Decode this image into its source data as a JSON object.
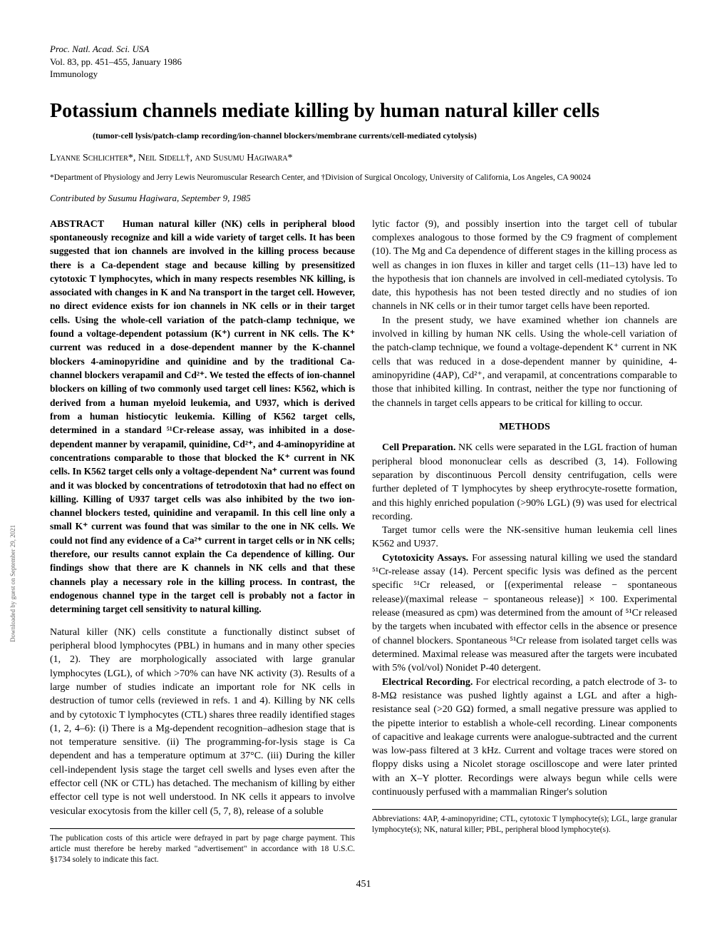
{
  "meta": {
    "journal": "Proc. Natl. Acad. Sci. USA",
    "volume": "Vol. 83, pp. 451–455, January 1986",
    "section": "Immunology"
  },
  "title": "Potassium channels mediate killing by human natural killer cells",
  "subtitle": "(tumor-cell lysis/patch-clamp recording/ion-channel blockers/membrane currents/cell-mediated cytolysis)",
  "authors": "Lyanne Schlichter*, Neil Sidell†, and Susumu Hagiwara*",
  "affiliation": "*Department of Physiology and Jerry Lewis Neuromuscular Research Center, and †Division of Surgical Oncology, University of California, Los Angeles, CA 90024",
  "contributed": "Contributed by Susumu Hagiwara, September 9, 1985",
  "abstract_label": "ABSTRACT",
  "abstract": "Human natural killer (NK) cells in peripheral blood spontaneously recognize and kill a wide variety of target cells. It has been suggested that ion channels are involved in the killing process because there is a Ca-dependent stage and because killing by presensitized cytotoxic T lymphocytes, which in many respects resembles NK killing, is associated with changes in K and Na transport in the target cell. However, no direct evidence exists for ion channels in NK cells or in their target cells. Using the whole-cell variation of the patch-clamp technique, we found a voltage-dependent potassium (K⁺) current in NK cells. The K⁺ current was reduced in a dose-dependent manner by the K-channel blockers 4-aminopyridine and quinidine and by the traditional Ca-channel blockers verapamil and Cd²⁺. We tested the effects of ion-channel blockers on killing of two commonly used target cell lines: K562, which is derived from a human myeloid leukemia, and U937, which is derived from a human histiocytic leukemia. Killing of K562 target cells, determined in a standard ⁵¹Cr-release assay, was inhibited in a dose-dependent manner by verapamil, quinidine, Cd²⁺, and 4-aminopyridine at concentrations comparable to those that blocked the K⁺ current in NK cells. In K562 target cells only a voltage-dependent Na⁺ current was found and it was blocked by concentrations of tetrodotoxin that had no effect on killing. Killing of U937 target cells was also inhibited by the two ion-channel blockers tested, quinidine and verapamil. In this cell line only a small K⁺ current was found that was similar to the one in NK cells. We could not find any evidence of a Ca²⁺ current in target cells or in NK cells; therefore, our results cannot explain the Ca dependence of killing. Our findings show that there are K channels in NK cells and that these channels play a necessary role in the killing process. In contrast, the endogenous channel type in the target cell is probably not a factor in determining target cell sensitivity to natural killing.",
  "intro_p1": "Natural killer (NK) cells constitute a functionally distinct subset of peripheral blood lymphocytes (PBL) in humans and in many other species (1, 2). They are morphologically associated with large granular lymphocytes (LGL), of which >70% can have NK activity (3). Results of a large number of studies indicate an important role for NK cells in destruction of tumor cells (reviewed in refs. 1 and 4). Killing by NK cells and by cytotoxic T lymphocytes (CTL) shares three readily identified stages (1, 2, 4–6): (i) There is a Mg-dependent recognition–adhesion stage that is not temperature sensitive. (ii) The programming-for-lysis stage is Ca dependent and has a temperature optimum at 37°C. (iii) During the killer cell-independent lysis stage the target cell swells and lyses even after the effector cell (NK or CTL) has detached. The mechanism of killing by either effector cell type is not well understood. In NK cells it appears to involve vesicular exocytosis from the killer cell (5, 7, 8), release of a soluble",
  "col2_p1": "lytic factor (9), and possibly insertion into the target cell of tubular complexes analogous to those formed by the C9 fragment of complement (10). The Mg and Ca dependence of different stages in the killing process as well as changes in ion fluxes in killer and target cells (11–13) have led to the hypothesis that ion channels are involved in cell-mediated cytolysis. To date, this hypothesis has not been tested directly and no studies of ion channels in NK cells or in their tumor target cells have been reported.",
  "col2_p2": "In the present study, we have examined whether ion channels are involved in killing by human NK cells. Using the whole-cell variation of the patch-clamp technique, we found a voltage-dependent K⁺ current in NK cells that was reduced in a dose-dependent manner by quinidine, 4-aminopyridine (4AP), Cd²⁺, and verapamil, at concentrations comparable to those that inhibited killing. In contrast, neither the type nor functioning of the channels in target cells appears to be critical for killing to occur.",
  "methods_head": "METHODS",
  "methods_cell_head": "Cell Preparation.",
  "methods_cell": " NK cells were separated in the LGL fraction of human peripheral blood mononuclear cells as described (3, 14). Following separation by discontinuous Percoll density centrifugation, cells were further depleted of T lymphocytes by sheep erythrocyte-rosette formation, and this highly enriched population (>90% LGL) (9) was used for electrical recording.",
  "methods_target": "Target tumor cells were the NK-sensitive human leukemia cell lines K562 and U937.",
  "methods_cyto_head": "Cytotoxicity Assays.",
  "methods_cyto": " For assessing natural killing we used the standard ⁵¹Cr-release assay (14). Percent specific lysis was defined as the percent specific ⁵¹Cr released, or [(experimental release − spontaneous release)/(maximal release − spontaneous release)] × 100. Experimental release (measured as cpm) was determined from the amount of ⁵¹Cr released by the targets when incubated with effector cells in the absence or presence of channel blockers. Spontaneous ⁵¹Cr release from isolated target cells was determined. Maximal release was measured after the targets were incubated with 5% (vol/vol) Nonidet P-40 detergent.",
  "methods_elec_head": "Electrical Recording.",
  "methods_elec": " For electrical recording, a patch electrode of 3- to 8-MΩ resistance was pushed lightly against a LGL and after a high-resistance seal (>20 GΩ) formed, a small negative pressure was applied to the pipette interior to establish a whole-cell recording. Linear components of capacitive and leakage currents were analogue-subtracted and the current was low-pass filtered at 3 kHz. Current and voltage traces were stored on floppy disks using a Nicolet storage oscilloscope and were later printed with an X–Y plotter. Recordings were always begun while cells were continuously perfused with a mammalian Ringer's solution",
  "footnote_left": "The publication costs of this article were defrayed in part by page charge payment. This article must therefore be hereby marked \"advertisement\" in accordance with 18 U.S.C. §1734 solely to indicate this fact.",
  "footnote_right": "Abbreviations: 4AP, 4-aminopyridine; CTL, cytotoxic T lymphocyte(s); LGL, large granular lymphocyte(s); NK, natural killer; PBL, peripheral blood lymphocyte(s).",
  "page_num": "451",
  "side": "Downloaded by guest on September 29, 2021"
}
